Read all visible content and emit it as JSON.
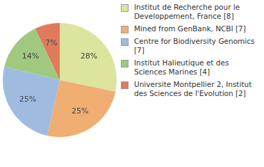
{
  "chart_data": {
    "type": "pie",
    "categories": [
      "Institut de Recherche pour le Developpement, France [8]",
      "Mined from GenBank, NCBI [7]",
      "Centre for Biodiversity Genomics [7]",
      "Institut Halieutique et des Sciences Marines [4]",
      "Universite Montpellier 2, Institut des Sciences de l'Evolution [2]"
    ],
    "values": [
      28,
      25,
      25,
      14,
      7
    ],
    "value_labels": [
      "28%",
      "25%",
      "25%",
      "14%",
      "7%"
    ],
    "colors": [
      "#dde49e",
      "#f0ae72",
      "#9fbce0",
      "#a0c97f",
      "#df7a5d"
    ],
    "legend": "right",
    "data_labels": true
  }
}
